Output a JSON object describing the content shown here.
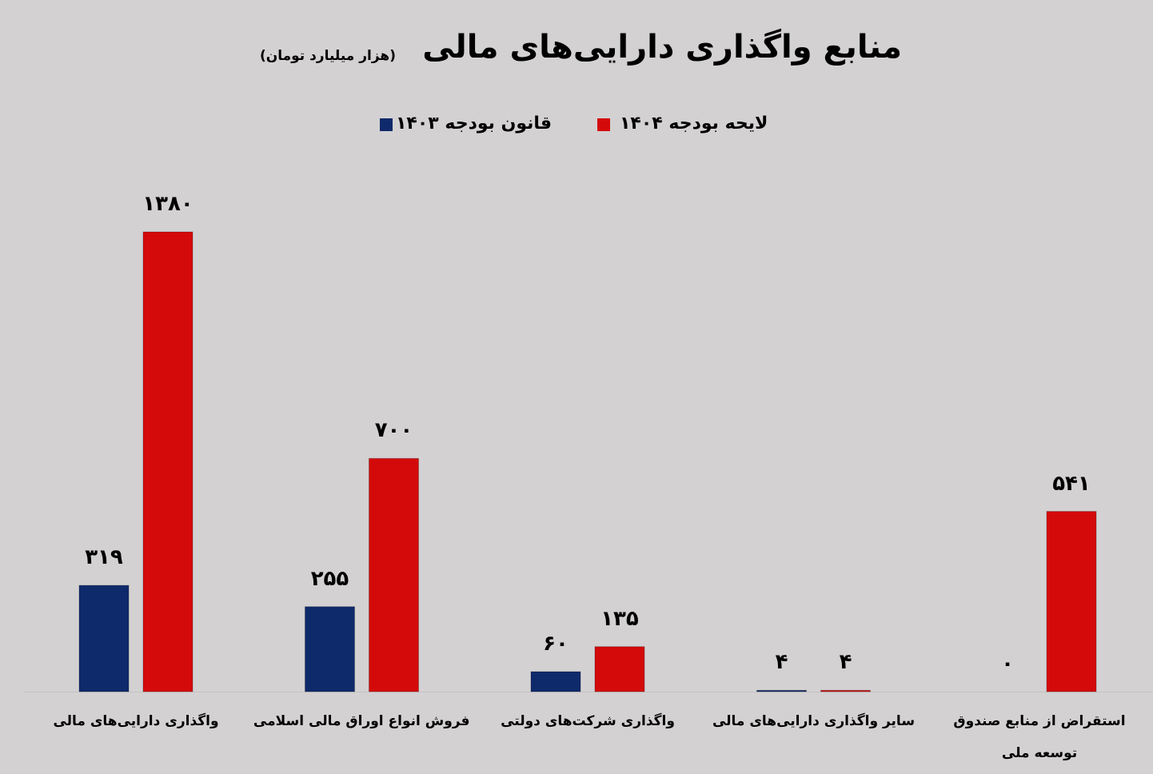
{
  "chart_data": {
    "type": "bar",
    "title": "منابع واگذاری دارایی‌های مالی",
    "subtitle": "(هزار میلیارد تومان)",
    "categories": [
      "واگذاری دارایی‌های مالی",
      "فروش انواع اوراق مالی اسلامی",
      "واگذاری شرکت‌های دولتی",
      "سایر واگذاری دارایی‌های مالی",
      "استقراض از منابع صندوق توسعه ملی"
    ],
    "series": [
      {
        "name": "قانون بودجه ۱۴۰۳",
        "color": "#0f2a6b",
        "values": [
          319,
          255,
          60,
          4,
          0
        ],
        "value_labels": [
          "۳۱۹",
          "۲۵۵",
          "۶۰",
          "۴",
          "۰"
        ]
      },
      {
        "name": "لایحه بودجه ۱۴۰۴",
        "color": "#d40a0a",
        "values": [
          1380,
          700,
          135,
          4,
          541
        ],
        "value_labels": [
          "۱۳۸۰",
          "۷۰۰",
          "۱۳۵",
          "۴",
          "۵۴۱"
        ]
      }
    ]
  }
}
